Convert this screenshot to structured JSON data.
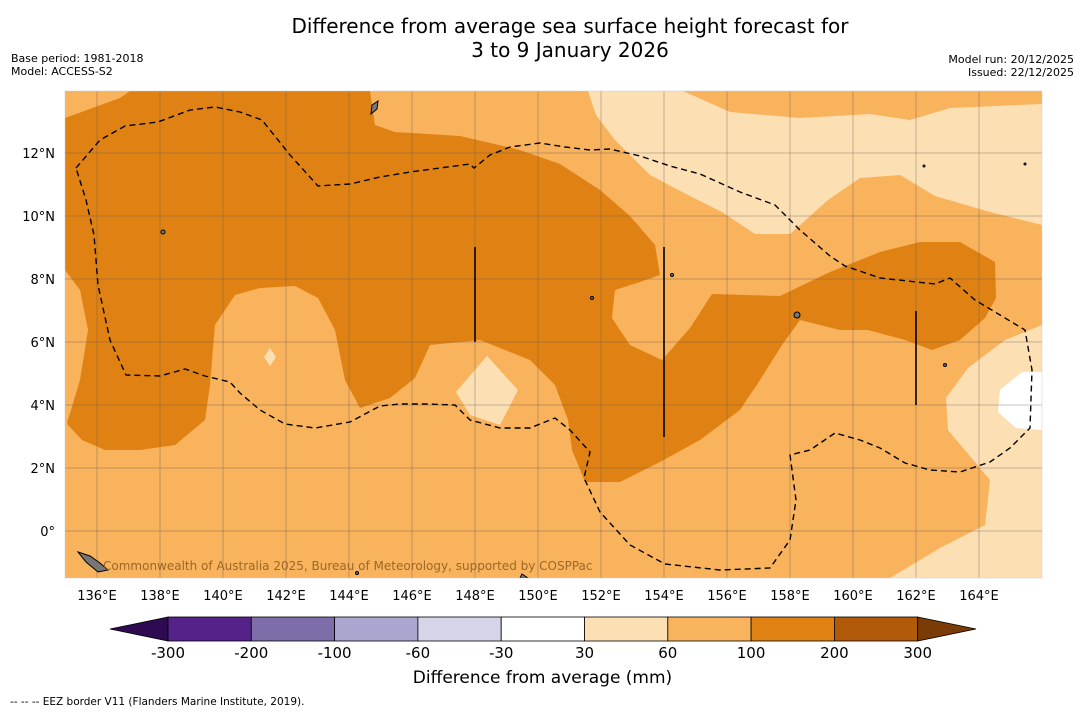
{
  "header": {
    "title_line1": "Difference from average sea surface height forecast for",
    "title_line2": "3 to 9 January 2026",
    "base_period": "Base period: 1981-2018",
    "model": "Model: ACCESS-S2",
    "model_run": "Model run: 20/12/2025",
    "issued": "Issued: 22/12/2025"
  },
  "map": {
    "lon_labels": [
      "136°E",
      "138°E",
      "140°E",
      "142°E",
      "144°E",
      "146°E",
      "148°E",
      "150°E",
      "152°E",
      "154°E",
      "156°E",
      "158°E",
      "160°E",
      "162°E",
      "164°E"
    ],
    "lat_labels": [
      "12°N",
      "10°N",
      "8°N",
      "6°N",
      "4°N",
      "2°N",
      "0°"
    ],
    "credit": "Commonwealth of Australia 2025, Bureau of Meteorology, supported by COSPPac",
    "colors": {
      "c30_60": "#fddfb4",
      "c60_100": "#f9b35d",
      "c100_200": "#e08213",
      "c200_300": "#b05a0a",
      "c_30_30": "#ffffff"
    }
  },
  "colorbar": {
    "title": "Difference from average (mm)",
    "tick_labels": [
      "-300",
      "-200",
      "-100",
      "-60",
      "-30",
      "30",
      "60",
      "100",
      "200",
      "300"
    ],
    "bins": [
      {
        "color": "#55228a"
      },
      {
        "color": "#7d6eaa"
      },
      {
        "color": "#aaa6cf"
      },
      {
        "color": "#d5d5ea"
      },
      {
        "color": "#ffffff"
      },
      {
        "color": "#fddfb4"
      },
      {
        "color": "#f9b35d"
      },
      {
        "color": "#e08213"
      },
      {
        "color": "#b05a0a"
      }
    ],
    "low_color": "#2d0a52",
    "high_color": "#7a3b06"
  },
  "footnote": "--  --  -- EEZ border V11 (Flanders Marine Institute, 2019)."
}
